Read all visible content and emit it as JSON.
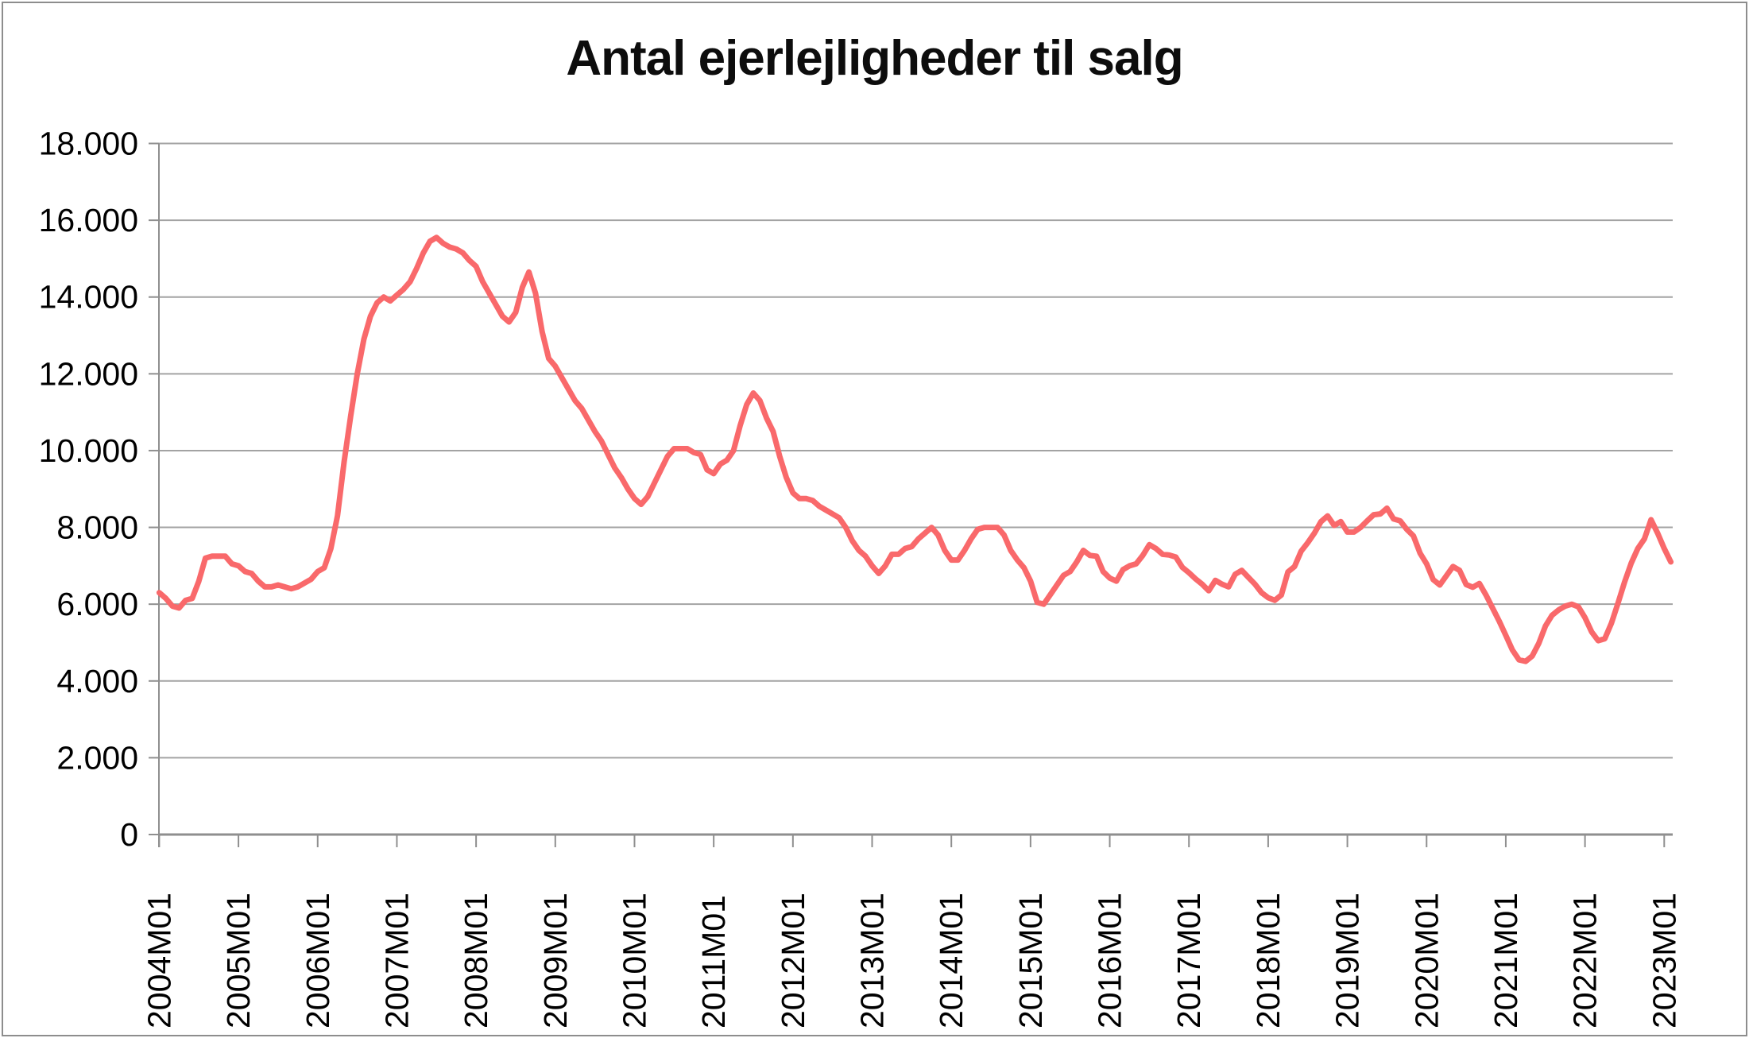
{
  "window": {
    "background_color": "#FFFFFF",
    "frame_border_color": "#8D8D8D"
  },
  "chart_data": {
    "type": "line",
    "title": "Antal ejerlejligheder til salg",
    "xlabel": "",
    "ylabel": "",
    "ylim": [
      0,
      18000
    ],
    "y_grid_step": 2000,
    "grid": true,
    "legend": "none",
    "y_tick_labels": [
      "0",
      "2.000",
      "4.000",
      "6.000",
      "8.000",
      "10.000",
      "12.000",
      "14.000",
      "16.000",
      "18.000"
    ],
    "x_tick_labels": [
      "2004M01",
      "2005M01",
      "2006M01",
      "2007M01",
      "2008M01",
      "2009M01",
      "2010M01",
      "2011M01",
      "2012M01",
      "2013M01",
      "2014M01",
      "2015M01",
      "2016M01",
      "2017M01",
      "2018M01",
      "2019M01",
      "2020M01",
      "2021M01",
      "2022M01",
      "2023M01"
    ],
    "x_frequency": "monthly",
    "x_start": "2004M01",
    "series": [
      {
        "values": [
          6300,
          6150,
          5950,
          5900,
          6100,
          6150,
          6600,
          7200,
          7250,
          7250,
          7250,
          7050,
          7000,
          6850,
          6800,
          6600,
          6450,
          6450,
          6500,
          6450,
          6400,
          6450,
          6550,
          6650,
          6850,
          6950,
          7450,
          8300,
          9700,
          10900,
          12000,
          12900,
          13500,
          13850,
          14000,
          13900,
          14050,
          14200,
          14400,
          14750,
          15150,
          15450,
          15550,
          15400,
          15300,
          15250,
          15150,
          14950,
          14800,
          14400,
          14100,
          13800,
          13500,
          13350,
          13600,
          14250,
          14650,
          14100,
          13100,
          12400,
          12200,
          11900,
          11600,
          11300,
          11100,
          10800,
          10500,
          10250,
          9900,
          9550,
          9300,
          9000,
          8750,
          8600,
          8800,
          9150,
          9500,
          9850,
          10050,
          10050,
          10050,
          9950,
          9900,
          9500,
          9400,
          9650,
          9750,
          10000,
          10650,
          11200,
          11500,
          11300,
          10850,
          10500,
          9850,
          9300,
          8900,
          8750,
          8750,
          8700,
          8550,
          8450,
          8350,
          8250,
          8000,
          7650,
          7400,
          7250,
          7000,
          6800,
          7000,
          7300,
          7300,
          7450,
          7500,
          7700,
          7850,
          8000,
          7800,
          7400,
          7150,
          7150,
          7400,
          7700,
          7950,
          8000,
          8000,
          8000,
          7800,
          7400,
          7150,
          6950,
          6600,
          6050,
          6000,
          6250,
          6500,
          6750,
          6850,
          7100,
          7400,
          7270,
          7250,
          6850,
          6680,
          6600,
          6900,
          7000,
          7050,
          7270,
          7550,
          7450,
          7300,
          7280,
          7230,
          6960,
          6820,
          6660,
          6520,
          6350,
          6620,
          6520,
          6450,
          6780,
          6880,
          6700,
          6520,
          6300,
          6170,
          6100,
          6240,
          6840,
          6980,
          7380,
          7600,
          7850,
          8150,
          8300,
          8050,
          8150,
          7880,
          7880,
          8000,
          8170,
          8330,
          8350,
          8500,
          8220,
          8170,
          7950,
          7780,
          7330,
          7050,
          6640,
          6500,
          6740,
          6980,
          6880,
          6510,
          6440,
          6540,
          6240,
          5900,
          5560,
          5190,
          4810,
          4550,
          4510,
          4650,
          4980,
          5430,
          5710,
          5850,
          5950,
          6000,
          5930,
          5650,
          5280,
          5050,
          5100,
          5500,
          6030,
          6580,
          7070,
          7450,
          7700,
          8200,
          7850,
          7450,
          7100
        ]
      }
    ],
    "colors": {
      "line": "#F9696B",
      "grid": "#A3A3A3",
      "axis": "#8F8F8F",
      "text": "#000000"
    }
  }
}
